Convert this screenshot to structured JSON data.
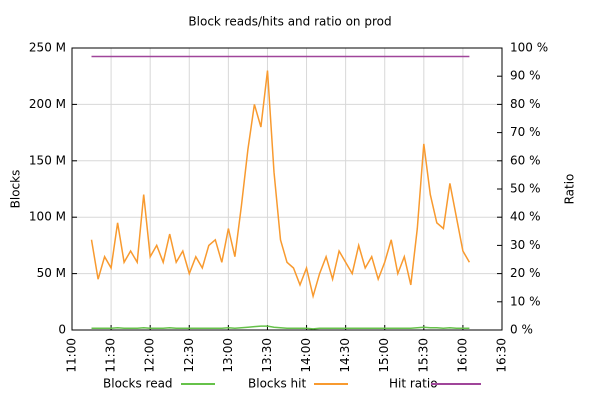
{
  "chart_data": {
    "type": "line",
    "title": "Block reads/hits and ratio on prod",
    "ylabel": "Blocks",
    "y2label": "Ratio",
    "x": [
      "11:15",
      "11:20",
      "11:25",
      "11:30",
      "11:35",
      "11:40",
      "11:45",
      "11:50",
      "11:55",
      "12:00",
      "12:05",
      "12:10",
      "12:15",
      "12:20",
      "12:25",
      "12:30",
      "12:35",
      "12:40",
      "12:45",
      "12:50",
      "12:55",
      "13:00",
      "13:05",
      "13:10",
      "13:15",
      "13:20",
      "13:25",
      "13:30",
      "13:35",
      "13:40",
      "13:45",
      "13:50",
      "13:55",
      "14:00",
      "14:05",
      "14:10",
      "14:15",
      "14:20",
      "14:25",
      "14:30",
      "14:35",
      "14:40",
      "14:45",
      "14:50",
      "14:55",
      "15:00",
      "15:05",
      "15:10",
      "15:15",
      "15:20",
      "15:25",
      "15:30",
      "15:35",
      "15:40",
      "15:45",
      "15:50",
      "15:55",
      "16:00",
      "16:05"
    ],
    "xlim": [
      "11:00",
      "16:30"
    ],
    "xticks": [
      "11:00",
      "11:30",
      "12:00",
      "12:30",
      "13:00",
      "13:30",
      "14:00",
      "14:30",
      "15:00",
      "15:30",
      "16:00",
      "16:30"
    ],
    "ylim": [
      0,
      250000000
    ],
    "yticks": [
      {
        "value": 0,
        "label": "0"
      },
      {
        "value": 50000000,
        "label": "50 M"
      },
      {
        "value": 100000000,
        "label": "100 M"
      },
      {
        "value": 150000000,
        "label": "150 M"
      },
      {
        "value": 200000000,
        "label": "200 M"
      },
      {
        "value": 250000000,
        "label": "250 M"
      }
    ],
    "y2lim": [
      0,
      100
    ],
    "y2ticks": [
      {
        "value": 0,
        "label": "0 %"
      },
      {
        "value": 10,
        "label": "10 %"
      },
      {
        "value": 20,
        "label": "20 %"
      },
      {
        "value": 30,
        "label": "30 %"
      },
      {
        "value": 40,
        "label": "40 %"
      },
      {
        "value": 50,
        "label": "50 %"
      },
      {
        "value": 60,
        "label": "60 %"
      },
      {
        "value": 70,
        "label": "70 %"
      },
      {
        "value": 80,
        "label": "80 %"
      },
      {
        "value": 90,
        "label": "90 %"
      },
      {
        "value": 100,
        "label": "100 %"
      }
    ],
    "grid": true,
    "series": [
      {
        "name": "Blocks read",
        "color": "#66c24a",
        "values": [
          1500000.0,
          1500000.0,
          1500000.0,
          1500000.0,
          2000000.0,
          1500000.0,
          1500000.0,
          1500000.0,
          2000000.0,
          1500000.0,
          1500000.0,
          1500000.0,
          2000000.0,
          1500000.0,
          1500000.0,
          1500000.0,
          1500000.0,
          1500000.0,
          1500000.0,
          1500000.0,
          1500000.0,
          2000000.0,
          1500000.0,
          2000000.0,
          2500000.0,
          3000000.0,
          3500000.0,
          3500000.0,
          2500000.0,
          2000000.0,
          1500000.0,
          1500000.0,
          1500000.0,
          1500000.0,
          1000000.0,
          1500000.0,
          1500000.0,
          1500000.0,
          1500000.0,
          1500000.0,
          1500000.0,
          1500000.0,
          1500000.0,
          1500000.0,
          1500000.0,
          1500000.0,
          1500000.0,
          1500000.0,
          1500000.0,
          1500000.0,
          2000000.0,
          2500000.0,
          2000000.0,
          2000000.0,
          1500000.0,
          2000000.0,
          1500000.0,
          1500000.0,
          1500000.0
        ]
      },
      {
        "name": "Blocks hit",
        "color": "#f89a2f",
        "values": [
          80000000.0,
          45000000.0,
          65000000.0,
          55000000.0,
          95000000.0,
          60000000.0,
          70000000.0,
          60000000.0,
          120000000.0,
          65000000.0,
          75000000.0,
          60000000.0,
          85000000.0,
          60000000.0,
          70000000.0,
          50000000.0,
          65000000.0,
          55000000.0,
          75000000.0,
          80000000.0,
          60000000.0,
          90000000.0,
          65000000.0,
          110000000.0,
          160000000.0,
          200000000.0,
          180000000.0,
          230000000.0,
          140000000.0,
          80000000.0,
          60000000.0,
          55000000.0,
          40000000.0,
          55000000.0,
          30000000.0,
          50000000.0,
          65000000.0,
          45000000.0,
          70000000.0,
          60000000.0,
          50000000.0,
          75000000.0,
          55000000.0,
          65000000.0,
          45000000.0,
          60000000.0,
          80000000.0,
          50000000.0,
          65000000.0,
          40000000.0,
          90000000.0,
          165000000.0,
          120000000.0,
          95000000.0,
          90000000.0,
          130000000.0,
          100000000.0,
          70000000.0,
          60000000.0
        ]
      },
      {
        "name": "Hit ratio",
        "color": "#a0459a",
        "axis": "y2",
        "values": [
          97,
          97,
          97,
          97,
          97,
          97,
          97,
          97,
          97,
          97,
          97,
          97,
          97,
          97,
          97,
          97,
          97,
          97,
          97,
          97,
          97,
          97,
          97,
          97,
          97,
          97,
          97,
          97,
          97,
          97,
          97,
          97,
          97,
          97,
          97,
          97,
          97,
          97,
          97,
          97,
          97,
          97,
          97,
          97,
          97,
          97,
          97,
          97,
          97,
          97,
          97,
          97,
          97,
          97,
          97,
          97,
          97,
          97,
          97
        ]
      }
    ]
  }
}
